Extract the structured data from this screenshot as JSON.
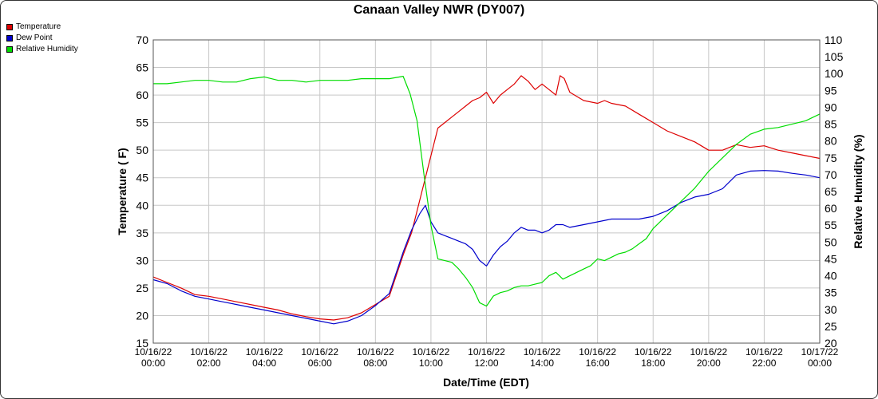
{
  "chart_data": {
    "type": "line",
    "title": "Canaan Valley NWR (DY007)",
    "xlabel": "Date/Time (EDT)",
    "ylabel": "Temperature ( F)",
    "ylabel_right": "Relative Humidity (%)",
    "ylim": [
      15,
      70
    ],
    "ylim_right": [
      20,
      110
    ],
    "xlim_hours": [
      0,
      24
    ],
    "grid": true,
    "legend_position": "top-left",
    "y_ticks": [
      15,
      20,
      25,
      30,
      35,
      40,
      45,
      50,
      55,
      60,
      65,
      70
    ],
    "y_ticks_right": [
      20,
      25,
      30,
      35,
      40,
      45,
      50,
      55,
      60,
      65,
      70,
      75,
      80,
      85,
      90,
      95,
      100,
      105,
      110
    ],
    "x_ticks": [
      {
        "date": "10/16/22",
        "time": "00:00"
      },
      {
        "date": "10/16/22",
        "time": "02:00"
      },
      {
        "date": "10/16/22",
        "time": "04:00"
      },
      {
        "date": "10/16/22",
        "time": "06:00"
      },
      {
        "date": "10/16/22",
        "time": "08:00"
      },
      {
        "date": "10/16/22",
        "time": "10:00"
      },
      {
        "date": "10/16/22",
        "time": "12:00"
      },
      {
        "date": "10/16/22",
        "time": "14:00"
      },
      {
        "date": "10/16/22",
        "time": "16:00"
      },
      {
        "date": "10/16/22",
        "time": "18:00"
      },
      {
        "date": "10/16/22",
        "time": "20:00"
      },
      {
        "date": "10/16/22",
        "time": "22:00"
      },
      {
        "date": "10/17/22",
        "time": "00:00"
      }
    ],
    "series": [
      {
        "name": "Temperature",
        "color": "#dd0000",
        "axis": "left",
        "x": [
          0,
          0.5,
          1,
          1.5,
          2,
          2.5,
          3,
          3.5,
          4,
          4.5,
          5,
          5.5,
          6,
          6.5,
          7,
          7.5,
          8,
          8.5,
          9,
          9.3,
          9.6,
          10,
          10.25,
          10.5,
          10.75,
          11,
          11.25,
          11.5,
          11.75,
          12,
          12.25,
          12.5,
          12.75,
          13,
          13.25,
          13.5,
          13.75,
          14,
          14.25,
          14.5,
          14.65,
          14.8,
          15,
          15.5,
          16,
          16.25,
          16.5,
          17,
          17.5,
          18,
          18.5,
          19,
          19.5,
          20,
          20.5,
          21,
          21.5,
          22,
          22.5,
          23,
          23.5,
          24
        ],
        "values": [
          27,
          26,
          25,
          23.8,
          23.5,
          23,
          22.5,
          22,
          21.5,
          21,
          20.3,
          19.8,
          19.4,
          19.2,
          19.6,
          20.5,
          22,
          23.5,
          31,
          35,
          41,
          49,
          54,
          55,
          56,
          57,
          58,
          59,
          59.5,
          60.5,
          58.5,
          60,
          61,
          62,
          63.5,
          62.5,
          61,
          62,
          61,
          60,
          63.5,
          63,
          60.5,
          59,
          58.5,
          59,
          58.5,
          58,
          56.5,
          55,
          53.5,
          52.5,
          51.5,
          50,
          50,
          51,
          50.5,
          50.8,
          50,
          49.5,
          49,
          48.5
        ]
      },
      {
        "name": "Dew Point",
        "color": "#0000cc",
        "axis": "left",
        "x": [
          0,
          0.5,
          1,
          1.5,
          2,
          2.5,
          3,
          3.5,
          4,
          4.5,
          5,
          5.5,
          6,
          6.5,
          7,
          7.5,
          8,
          8.5,
          9,
          9.3,
          9.6,
          9.8,
          10,
          10.25,
          10.5,
          10.75,
          11,
          11.25,
          11.5,
          11.75,
          12,
          12.25,
          12.5,
          12.75,
          13,
          13.25,
          13.5,
          13.75,
          14,
          14.25,
          14.5,
          14.75,
          15,
          15.5,
          16,
          16.5,
          17,
          17.5,
          18,
          18.5,
          19,
          19.5,
          20,
          20.5,
          21,
          21.5,
          22,
          22.5,
          23,
          23.5,
          24
        ],
        "values": [
          26.5,
          25.8,
          24.5,
          23.5,
          23,
          22.5,
          22,
          21.5,
          21,
          20.5,
          20,
          19.5,
          19,
          18.5,
          19,
          20,
          21.8,
          24,
          31.5,
          35.5,
          38.5,
          40,
          37,
          35,
          34.5,
          34,
          33.5,
          33,
          32,
          30,
          29,
          31,
          32.5,
          33.5,
          35,
          36,
          35.5,
          35.5,
          35,
          35.5,
          36.5,
          36.5,
          36,
          36.5,
          37,
          37.5,
          37.5,
          37.5,
          38,
          39,
          40.5,
          41.5,
          42,
          43,
          45.5,
          46.2,
          46.3,
          46.2,
          45.8,
          45.5,
          45
        ]
      },
      {
        "name": "Relative Humidity",
        "color": "#00dd00",
        "axis": "right",
        "x": [
          0,
          0.5,
          1,
          1.5,
          2,
          2.5,
          3,
          3.5,
          4,
          4.5,
          5,
          5.5,
          6,
          6.5,
          7,
          7.5,
          8,
          8.5,
          9,
          9.25,
          9.5,
          9.75,
          10,
          10.25,
          10.5,
          10.75,
          11,
          11.25,
          11.5,
          11.75,
          12,
          12.25,
          12.5,
          12.75,
          13,
          13.25,
          13.5,
          13.75,
          14,
          14.25,
          14.5,
          14.75,
          15,
          15.25,
          15.5,
          15.75,
          16,
          16.25,
          16.5,
          16.75,
          17,
          17.25,
          17.5,
          17.75,
          18,
          18.5,
          19,
          19.5,
          20,
          20.5,
          21,
          21.5,
          22,
          22.5,
          23,
          23.5,
          24
        ],
        "values": [
          97,
          97,
          97.5,
          98,
          98,
          97.5,
          97.5,
          98.5,
          99,
          98,
          98,
          97.5,
          98,
          98,
          98,
          98.5,
          98.5,
          98.5,
          99.2,
          94,
          86,
          70,
          55,
          45,
          44.5,
          44,
          42,
          39.5,
          36.5,
          32,
          31,
          34,
          35,
          35.5,
          36.5,
          37,
          37,
          37.5,
          38,
          40,
          41,
          39,
          40,
          41,
          42,
          43,
          45,
          44.5,
          45.5,
          46.5,
          47,
          48,
          49.5,
          51,
          54,
          58,
          62,
          66,
          71,
          75,
          79,
          82,
          83.5,
          84,
          85,
          86,
          88
        ]
      }
    ]
  }
}
